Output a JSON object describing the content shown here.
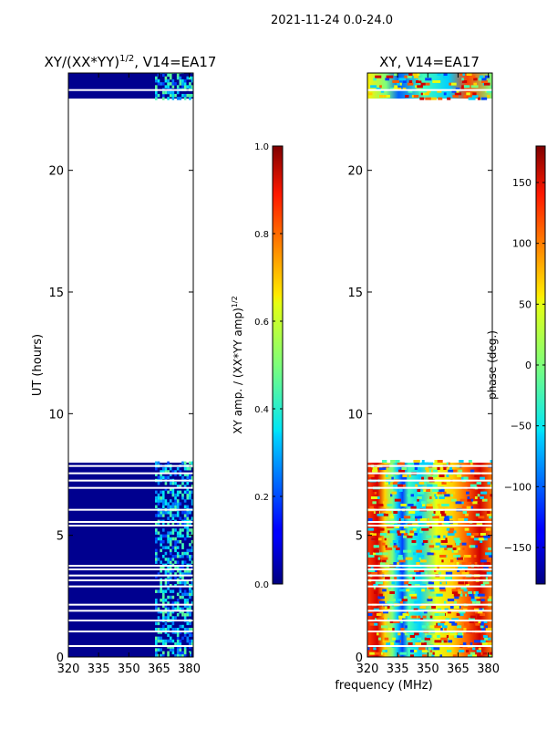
{
  "suptitle": "2021-11-24 0.0-24.0",
  "colors": {
    "frame": "#000000",
    "nodata": "#ffffff",
    "gridgap": "#ffffff"
  },
  "chart_data": [
    {
      "type": "heatmap",
      "title": "XY/(XX*YY)",
      "title_sup": "1/2",
      "title_suffix": ", V14=EA17",
      "xlabel": "",
      "ylabel": "UT (hours)",
      "xlim": [
        320,
        382
      ],
      "ylim": [
        0,
        24
      ],
      "xticks": [
        320,
        335,
        350,
        365,
        380
      ],
      "yticks": [
        0,
        5,
        10,
        15,
        20
      ],
      "data_spans_hours": [
        [
          0,
          8
        ],
        [
          22.9,
          24
        ]
      ],
      "bright_band_mhz": [
        363,
        381
      ],
      "colorbar": {
        "label": "XY amp. / (XX*YY amp)",
        "label_sup": "1/2",
        "range": [
          0.0,
          1.0
        ],
        "ticks": [
          "0.0",
          "0.2",
          "0.4",
          "0.6",
          "0.8",
          "1.0"
        ],
        "tick_values": [
          0.0,
          0.2,
          0.4,
          0.6,
          0.8,
          1.0
        ]
      }
    },
    {
      "type": "heatmap",
      "title": "XY, V14=EA17",
      "xlabel": "frequency (MHz)",
      "ylabel": "",
      "xlim": [
        320,
        382
      ],
      "ylim": [
        0,
        24
      ],
      "xticks": [
        320,
        335,
        350,
        365,
        380
      ],
      "yticks": [
        0,
        5,
        10,
        15,
        20
      ],
      "data_spans_hours": [
        [
          0,
          8
        ],
        [
          22.9,
          24
        ]
      ],
      "colorbar": {
        "label": "phase (deg.)",
        "range": [
          -180,
          180
        ],
        "ticks": [
          "−150",
          "−100",
          "−50",
          "0",
          "50",
          "100",
          "150"
        ],
        "tick_values": [
          -150,
          -100,
          -50,
          0,
          50,
          100,
          150
        ]
      }
    }
  ],
  "gap_rows_hours": [
    0.45,
    1.05,
    1.5,
    1.9,
    2.15,
    2.9,
    3.15,
    3.35,
    3.6,
    3.75,
    5.4,
    5.55,
    6.05,
    6.95,
    7.25,
    7.55,
    7.85,
    23.3
  ]
}
